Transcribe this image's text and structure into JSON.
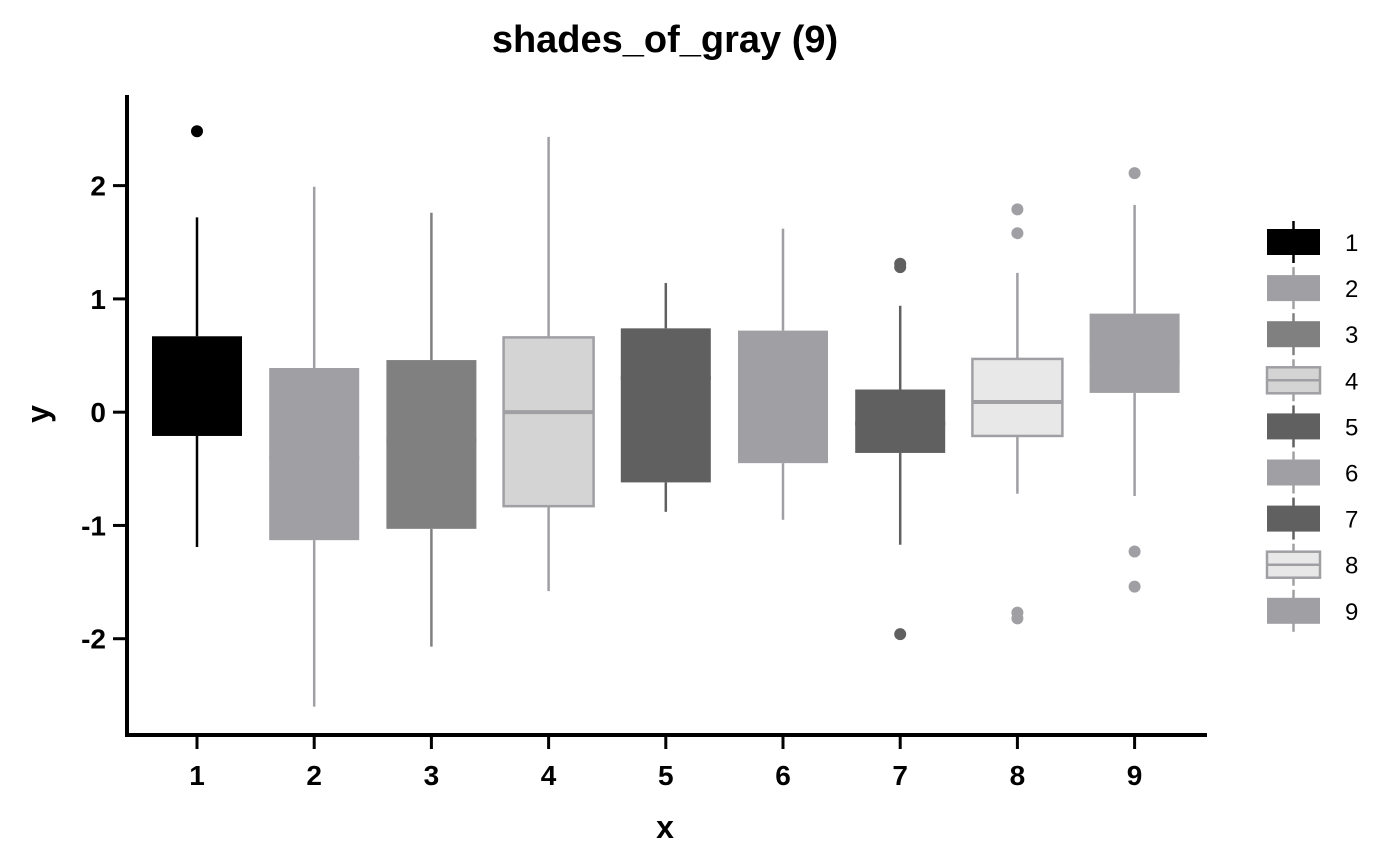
{
  "chart_data": {
    "type": "box",
    "title": "shades_of_gray (9)",
    "xlabel": "x",
    "ylabel": "y",
    "ylim": [
      -2.85,
      2.8
    ],
    "yticks": [
      2,
      1,
      0,
      -1,
      -2
    ],
    "ytick_labels": [
      "2",
      "1",
      "0",
      "-1",
      "-2"
    ],
    "grid": false,
    "legend_position": "right",
    "legend_entries": [
      "1",
      "2",
      "3",
      "4",
      "5",
      "6",
      "7",
      "8",
      "9"
    ],
    "categories": [
      "1",
      "2",
      "3",
      "4",
      "5",
      "6",
      "7",
      "8",
      "9"
    ],
    "series": [
      {
        "category": "1",
        "color": "#000000",
        "q1": -0.21,
        "median": 0.22,
        "q3": 0.67,
        "whisker_low": -1.19,
        "whisker_high": 1.72,
        "outliers": [
          2.48
        ]
      },
      {
        "category": "2",
        "color": "#a0a0a4",
        "q1": -1.13,
        "median": -0.4,
        "q3": 0.39,
        "whisker_low": -2.6,
        "whisker_high": 1.99,
        "outliers": []
      },
      {
        "category": "3",
        "color": "#808080",
        "q1": -1.03,
        "median": -0.25,
        "q3": 0.46,
        "whisker_low": -2.07,
        "whisker_high": 1.76,
        "outliers": []
      },
      {
        "category": "4",
        "color": "#d4d4d4",
        "q1": -0.83,
        "median": 0.0,
        "q3": 0.66,
        "whisker_low": -1.58,
        "whisker_high": 2.43,
        "outliers": []
      },
      {
        "category": "5",
        "color": "#606060",
        "q1": -0.62,
        "median": 0.3,
        "q3": 0.74,
        "whisker_low": -0.88,
        "whisker_high": 1.14,
        "outliers": []
      },
      {
        "category": "6",
        "color": "#a0a0a4",
        "q1": -0.45,
        "median": 0.2,
        "q3": 0.72,
        "whisker_low": -0.95,
        "whisker_high": 1.62,
        "outliers": []
      },
      {
        "category": "7",
        "color": "#606060",
        "q1": -0.36,
        "median": -0.1,
        "q3": 0.2,
        "whisker_low": -1.17,
        "whisker_high": 0.94,
        "outliers": [
          1.31,
          1.28,
          -1.96
        ]
      },
      {
        "category": "8",
        "color": "#e8e8e8",
        "q1": -0.21,
        "median": 0.09,
        "q3": 0.47,
        "whisker_low": -0.72,
        "whisker_high": 1.23,
        "outliers": [
          1.79,
          1.58,
          -1.77,
          -1.82
        ]
      },
      {
        "category": "9",
        "color": "#a0a0a4",
        "q1": 0.17,
        "median": 0.45,
        "q3": 0.87,
        "whisker_low": -0.74,
        "whisker_high": 1.83,
        "outliers": [
          2.11,
          -1.23,
          -1.54
        ]
      }
    ]
  }
}
